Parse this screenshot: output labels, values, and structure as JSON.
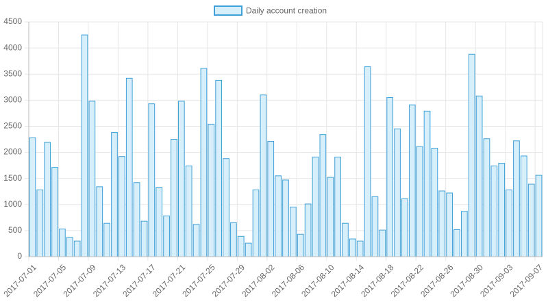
{
  "chart_data": {
    "type": "bar",
    "categories": [
      "2017-07-01",
      null,
      null,
      null,
      "2017-07-05",
      null,
      null,
      null,
      "2017-07-09",
      null,
      null,
      null,
      "2017-07-13",
      null,
      null,
      null,
      "2017-07-17",
      null,
      null,
      null,
      "2017-07-21",
      null,
      null,
      null,
      "2017-07-25",
      null,
      null,
      null,
      "2017-07-29",
      null,
      null,
      null,
      "2017-08-02",
      null,
      null,
      null,
      "2017-08-06",
      null,
      null,
      null,
      "2017-08-10",
      null,
      null,
      null,
      "2017-08-14",
      null,
      null,
      null,
      "2017-08-18",
      null,
      null,
      null,
      "2017-08-22",
      null,
      null,
      null,
      "2017-08-26",
      null,
      null,
      null,
      "2017-08-30",
      null,
      null,
      null,
      "2017-09-03",
      null,
      null,
      null,
      "2017-09-07"
    ],
    "series": [
      {
        "name": "Daily account creation",
        "color": "#3ea0d8",
        "fill": "#d7eefb",
        "values": [
          2280,
          1280,
          2190,
          1710,
          530,
          370,
          300,
          4250,
          2980,
          1340,
          640,
          2380,
          1920,
          3420,
          1420,
          680,
          2930,
          1330,
          780,
          2250,
          2980,
          1740,
          620,
          3610,
          2540,
          3380,
          1880,
          650,
          390,
          260,
          1280,
          3100,
          2210,
          1550,
          1470,
          950,
          430,
          1010,
          1910,
          2340,
          1520,
          1910,
          640,
          340,
          300,
          3640,
          1150,
          510,
          3050,
          2450,
          1110,
          2910,
          2110,
          2790,
          2080,
          1260,
          1220,
          520,
          870,
          3880,
          3080,
          2260,
          1740,
          1790,
          1280,
          2220,
          1930,
          1390,
          1560
        ]
      }
    ],
    "ylim": [
      0,
      4500
    ],
    "yticks": [
      0,
      500,
      1000,
      1500,
      2000,
      2500,
      3000,
      3500,
      4000,
      4500
    ],
    "grid": true,
    "legend": "top"
  }
}
